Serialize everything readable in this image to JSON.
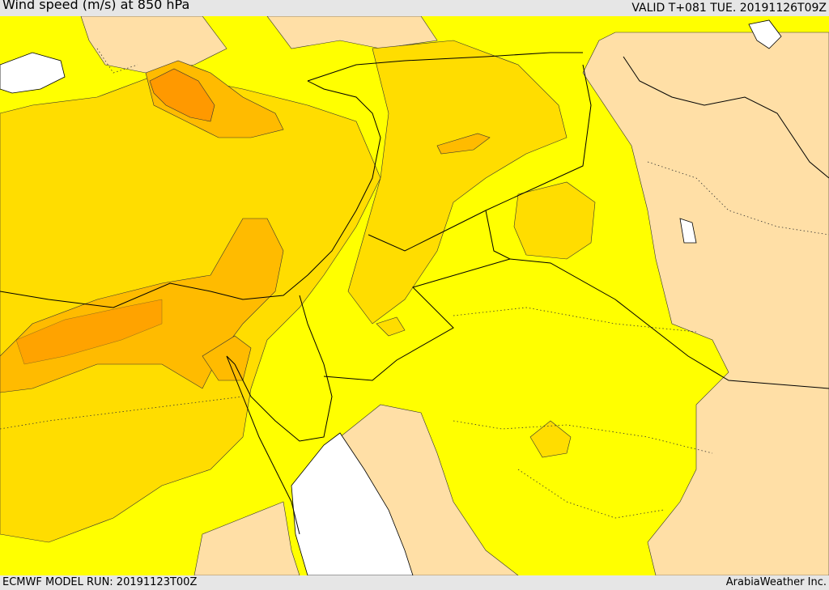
{
  "header": {
    "title": "Wind speed (m/s) at 850 hPa",
    "valid": "VALID T+081 TUE. 20191126T09Z"
  },
  "footer": {
    "model_run": "ECMWF MODEL RUN: 20191123T00Z",
    "credit": "ArabiaWeather Inc."
  },
  "colors": {
    "level_1": "#ffdfa6",
    "level_2": "#ffff00",
    "level_3": "#ffdd00",
    "level_4": "#ffbb00",
    "level_5": "#ff9900",
    "water": "#ffffff",
    "borders": "#000000"
  }
}
